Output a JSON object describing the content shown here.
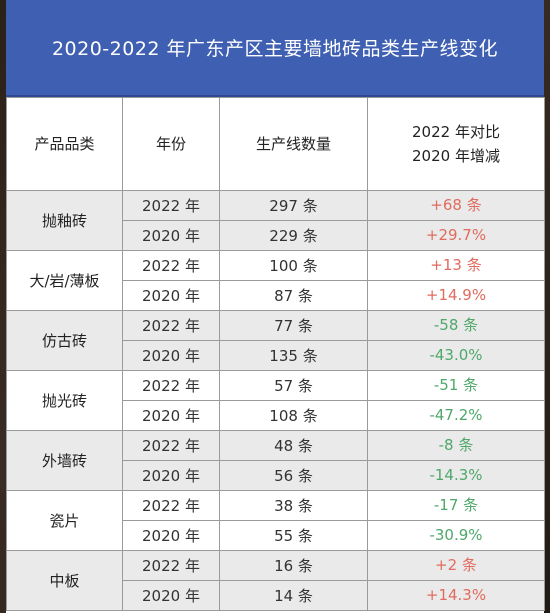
{
  "title": "2020-2022 年广东产区主要墙地砖品类生产线变化",
  "headers": {
    "category": "产品品类",
    "year": "年份",
    "count": "生产线数量",
    "change_line1": "2022 年对比",
    "change_line2": "2020 年增减"
  },
  "colors": {
    "increase": "#e06b5e",
    "decrease": "#4fa76a",
    "title_bg": "#3f5fb2"
  },
  "groups": [
    {
      "category": "抛釉砖",
      "rows": [
        {
          "year": "2022 年",
          "count": "297 条",
          "change": "+68 条"
        },
        {
          "year": "2020 年",
          "count": "229 条",
          "change": "+29.7%"
        }
      ]
    },
    {
      "category": "大/岩/薄板",
      "rows": [
        {
          "year": "2022 年",
          "count": "100 条",
          "change": "+13 条"
        },
        {
          "year": "2020 年",
          "count": "87 条",
          "change": "+14.9%"
        }
      ]
    },
    {
      "category": "仿古砖",
      "rows": [
        {
          "year": "2022 年",
          "count": "77 条",
          "change": "-58 条"
        },
        {
          "year": "2020 年",
          "count": "135 条",
          "change": "-43.0%"
        }
      ]
    },
    {
      "category": "抛光砖",
      "rows": [
        {
          "year": "2022 年",
          "count": "57 条",
          "change": "-51 条"
        },
        {
          "year": "2020 年",
          "count": "108 条",
          "change": "-47.2%"
        }
      ]
    },
    {
      "category": "外墙砖",
      "rows": [
        {
          "year": "2022 年",
          "count": "48 条",
          "change": "-8 条"
        },
        {
          "year": "2020 年",
          "count": "56 条",
          "change": "-14.3%"
        }
      ]
    },
    {
      "category": "瓷片",
      "rows": [
        {
          "year": "2022 年",
          "count": "38 条",
          "change": "-17 条"
        },
        {
          "year": "2020 年",
          "count": "55 条",
          "change": "-30.9%"
        }
      ]
    },
    {
      "category": "中板",
      "rows": [
        {
          "year": "2022 年",
          "count": "16 条",
          "change": "+2 条"
        },
        {
          "year": "2020 年",
          "count": "14 条",
          "change": "+14.3%"
        }
      ]
    }
  ]
}
